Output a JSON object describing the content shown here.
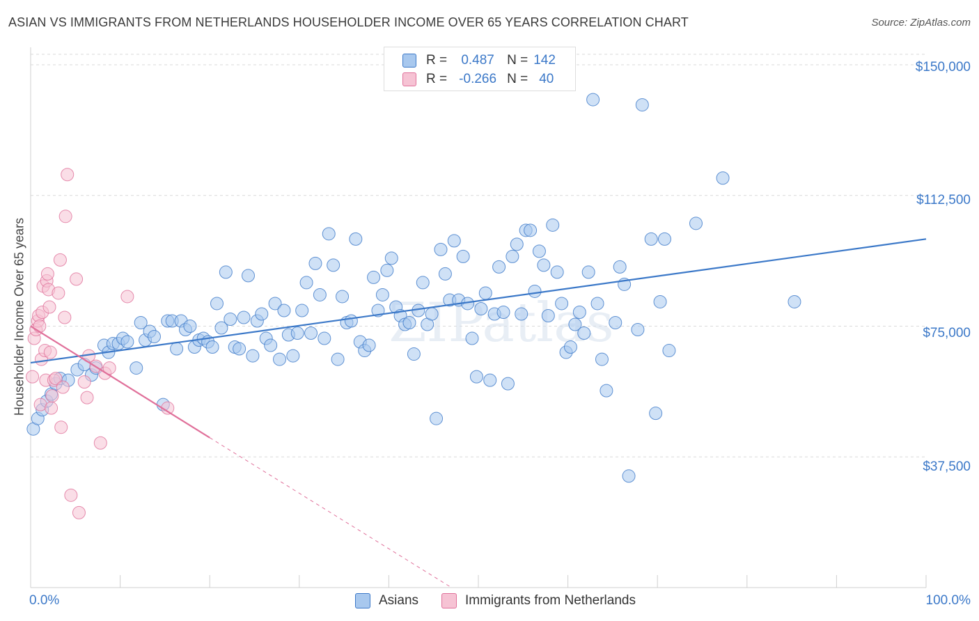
{
  "title": "ASIAN VS IMMIGRANTS FROM NETHERLANDS HOUSEHOLDER INCOME OVER 65 YEARS CORRELATION CHART",
  "source": "Source: ZipAtlas.com",
  "watermark": "ZIPatlas",
  "colors": {
    "blue": "#3b78c8",
    "blue_fill": "#a8c8ee",
    "pink": "#e0709a",
    "pink_fill": "#f6b8cc"
  },
  "legend": {
    "rows": [
      {
        "r_label": "R =",
        "r_value": "0.487",
        "n_label": "N =",
        "n_value": "142"
      },
      {
        "r_label": "R =",
        "r_value": "-0.266",
        "n_label": "N =",
        "n_value": "40"
      }
    ]
  },
  "chart_data": {
    "type": "scatter",
    "title": "ASIAN VS IMMIGRANTS FROM NETHERLANDS HOUSEHOLDER INCOME OVER 65 YEARS CORRELATION CHART",
    "xlabel": "",
    "ylabel": "Householder Income Over 65 years",
    "xlim": [
      0,
      100
    ],
    "ylim": [
      0,
      153000
    ],
    "x_tick_labels": [
      "0.0%",
      "100.0%"
    ],
    "y_ticks": [
      37500,
      75000,
      112500,
      150000
    ],
    "y_tick_labels": [
      "$37,500",
      "$75,000",
      "$112,500",
      "$150,000"
    ],
    "grid": true,
    "legend_position": "top-center",
    "series": [
      {
        "name": "Asians",
        "color": "#3b78c8",
        "r": 0.487,
        "n": 142,
        "trend": {
          "x": [
            0,
            100
          ],
          "y": [
            64500,
            100000
          ]
        },
        "points": [
          [
            0.3,
            45500
          ],
          [
            0.8,
            48500
          ],
          [
            1.3,
            51000
          ],
          [
            1.8,
            53500
          ],
          [
            2.3,
            55500
          ],
          [
            2.8,
            58500
          ],
          [
            3.3,
            60000
          ],
          [
            4.2,
            59500
          ],
          [
            5.2,
            62500
          ],
          [
            6.0,
            64000
          ],
          [
            6.8,
            61000
          ],
          [
            7.3,
            63000
          ],
          [
            8.2,
            69500
          ],
          [
            8.7,
            67500
          ],
          [
            9.2,
            70000
          ],
          [
            9.8,
            70000
          ],
          [
            10.3,
            71500
          ],
          [
            10.8,
            70500
          ],
          [
            11.8,
            63000
          ],
          [
            12.3,
            76000
          ],
          [
            12.8,
            71000
          ],
          [
            13.3,
            73500
          ],
          [
            13.8,
            72000
          ],
          [
            14.8,
            52500
          ],
          [
            15.3,
            76500
          ],
          [
            15.8,
            76500
          ],
          [
            16.3,
            68500
          ],
          [
            16.8,
            76500
          ],
          [
            17.3,
            74000
          ],
          [
            17.8,
            75000
          ],
          [
            18.3,
            69000
          ],
          [
            18.8,
            71000
          ],
          [
            19.3,
            71500
          ],
          [
            19.8,
            70500
          ],
          [
            20.3,
            69000
          ],
          [
            20.8,
            81500
          ],
          [
            21.3,
            74500
          ],
          [
            21.8,
            90500
          ],
          [
            22.3,
            77000
          ],
          [
            22.8,
            69000
          ],
          [
            23.3,
            68500
          ],
          [
            23.8,
            77500
          ],
          [
            24.3,
            89500
          ],
          [
            24.8,
            66500
          ],
          [
            25.3,
            76500
          ],
          [
            25.8,
            78500
          ],
          [
            26.3,
            71500
          ],
          [
            26.8,
            69500
          ],
          [
            27.3,
            81500
          ],
          [
            27.8,
            65500
          ],
          [
            28.3,
            79500
          ],
          [
            28.8,
            72500
          ],
          [
            29.3,
            66500
          ],
          [
            29.8,
            73000
          ],
          [
            30.3,
            79500
          ],
          [
            30.8,
            87500
          ],
          [
            31.3,
            73000
          ],
          [
            31.8,
            93000
          ],
          [
            32.3,
            84000
          ],
          [
            32.8,
            71500
          ],
          [
            33.3,
            101500
          ],
          [
            33.8,
            92500
          ],
          [
            34.3,
            65500
          ],
          [
            34.8,
            83500
          ],
          [
            35.3,
            76000
          ],
          [
            35.8,
            76500
          ],
          [
            36.3,
            100000
          ],
          [
            36.8,
            70500
          ],
          [
            37.3,
            68000
          ],
          [
            37.8,
            69500
          ],
          [
            38.3,
            89000
          ],
          [
            38.8,
            79500
          ],
          [
            39.3,
            84000
          ],
          [
            39.8,
            91000
          ],
          [
            40.3,
            94500
          ],
          [
            40.8,
            80500
          ],
          [
            41.3,
            78000
          ],
          [
            41.8,
            75500
          ],
          [
            42.3,
            76000
          ],
          [
            42.8,
            67000
          ],
          [
            43.3,
            79500
          ],
          [
            43.8,
            87500
          ],
          [
            44.3,
            75500
          ],
          [
            44.8,
            78500
          ],
          [
            45.3,
            48500
          ],
          [
            45.8,
            97000
          ],
          [
            46.3,
            90000
          ],
          [
            46.8,
            82500
          ],
          [
            47.3,
            99500
          ],
          [
            47.8,
            82500
          ],
          [
            48.3,
            95000
          ],
          [
            48.8,
            81500
          ],
          [
            49.3,
            71500
          ],
          [
            49.8,
            60500
          ],
          [
            50.3,
            80000
          ],
          [
            50.8,
            84500
          ],
          [
            51.3,
            59500
          ],
          [
            51.8,
            78500
          ],
          [
            52.3,
            92000
          ],
          [
            52.8,
            79000
          ],
          [
            53.3,
            58500
          ],
          [
            53.8,
            95000
          ],
          [
            54.3,
            98500
          ],
          [
            54.8,
            78500
          ],
          [
            55.3,
            102500
          ],
          [
            55.8,
            102500
          ],
          [
            56.3,
            85000
          ],
          [
            56.8,
            96500
          ],
          [
            57.3,
            92500
          ],
          [
            57.8,
            78000
          ],
          [
            58.3,
            104000
          ],
          [
            58.8,
            90500
          ],
          [
            59.3,
            81500
          ],
          [
            59.8,
            67500
          ],
          [
            60.3,
            69000
          ],
          [
            60.8,
            75500
          ],
          [
            61.3,
            79000
          ],
          [
            61.8,
            73000
          ],
          [
            62.3,
            90500
          ],
          [
            62.8,
            140000
          ],
          [
            63.3,
            81500
          ],
          [
            63.8,
            65500
          ],
          [
            64.3,
            56500
          ],
          [
            65.3,
            76000
          ],
          [
            65.8,
            92000
          ],
          [
            66.3,
            87000
          ],
          [
            66.8,
            32000
          ],
          [
            67.8,
            74000
          ],
          [
            68.3,
            138500
          ],
          [
            69.3,
            100000
          ],
          [
            69.8,
            50000
          ],
          [
            70.3,
            82000
          ],
          [
            70.8,
            100000
          ],
          [
            71.3,
            68000
          ],
          [
            74.3,
            104500
          ],
          [
            77.3,
            117500
          ],
          [
            85.3,
            82000
          ]
        ]
      },
      {
        "name": "Immigrants from Netherlands",
        "color": "#e0709a",
        "r": -0.266,
        "n": 40,
        "trend": {
          "x": [
            0,
            20
          ],
          "y": [
            75000,
            43000
          ],
          "dashed_to": {
            "x": 47,
            "y": 0
          }
        },
        "points": [
          [
            0.2,
            60500
          ],
          [
            0.4,
            71500
          ],
          [
            0.6,
            74000
          ],
          [
            0.8,
            76500
          ],
          [
            0.9,
            78000
          ],
          [
            1.0,
            75000
          ],
          [
            1.1,
            52500
          ],
          [
            1.2,
            65500
          ],
          [
            1.3,
            79000
          ],
          [
            1.4,
            86500
          ],
          [
            1.6,
            68000
          ],
          [
            1.7,
            59500
          ],
          [
            1.8,
            88000
          ],
          [
            1.9,
            90000
          ],
          [
            2.0,
            85500
          ],
          [
            2.1,
            80500
          ],
          [
            2.2,
            67500
          ],
          [
            2.3,
            51500
          ],
          [
            2.4,
            55000
          ],
          [
            2.6,
            59500
          ],
          [
            2.8,
            60000
          ],
          [
            3.1,
            84500
          ],
          [
            3.3,
            94000
          ],
          [
            3.4,
            46000
          ],
          [
            3.6,
            57500
          ],
          [
            3.8,
            77500
          ],
          [
            4.1,
            118500
          ],
          [
            3.9,
            106500
          ],
          [
            4.5,
            26500
          ],
          [
            5.1,
            88500
          ],
          [
            5.4,
            21500
          ],
          [
            6.0,
            59000
          ],
          [
            6.3,
            54500
          ],
          [
            6.5,
            66500
          ],
          [
            7.3,
            63500
          ],
          [
            7.8,
            41500
          ],
          [
            8.3,
            61500
          ],
          [
            8.8,
            63000
          ],
          [
            10.8,
            83500
          ],
          [
            15.3,
            51500
          ]
        ]
      }
    ]
  },
  "bottom_legend": [
    {
      "label": "Asians"
    },
    {
      "label": "Immigrants from Netherlands"
    }
  ]
}
